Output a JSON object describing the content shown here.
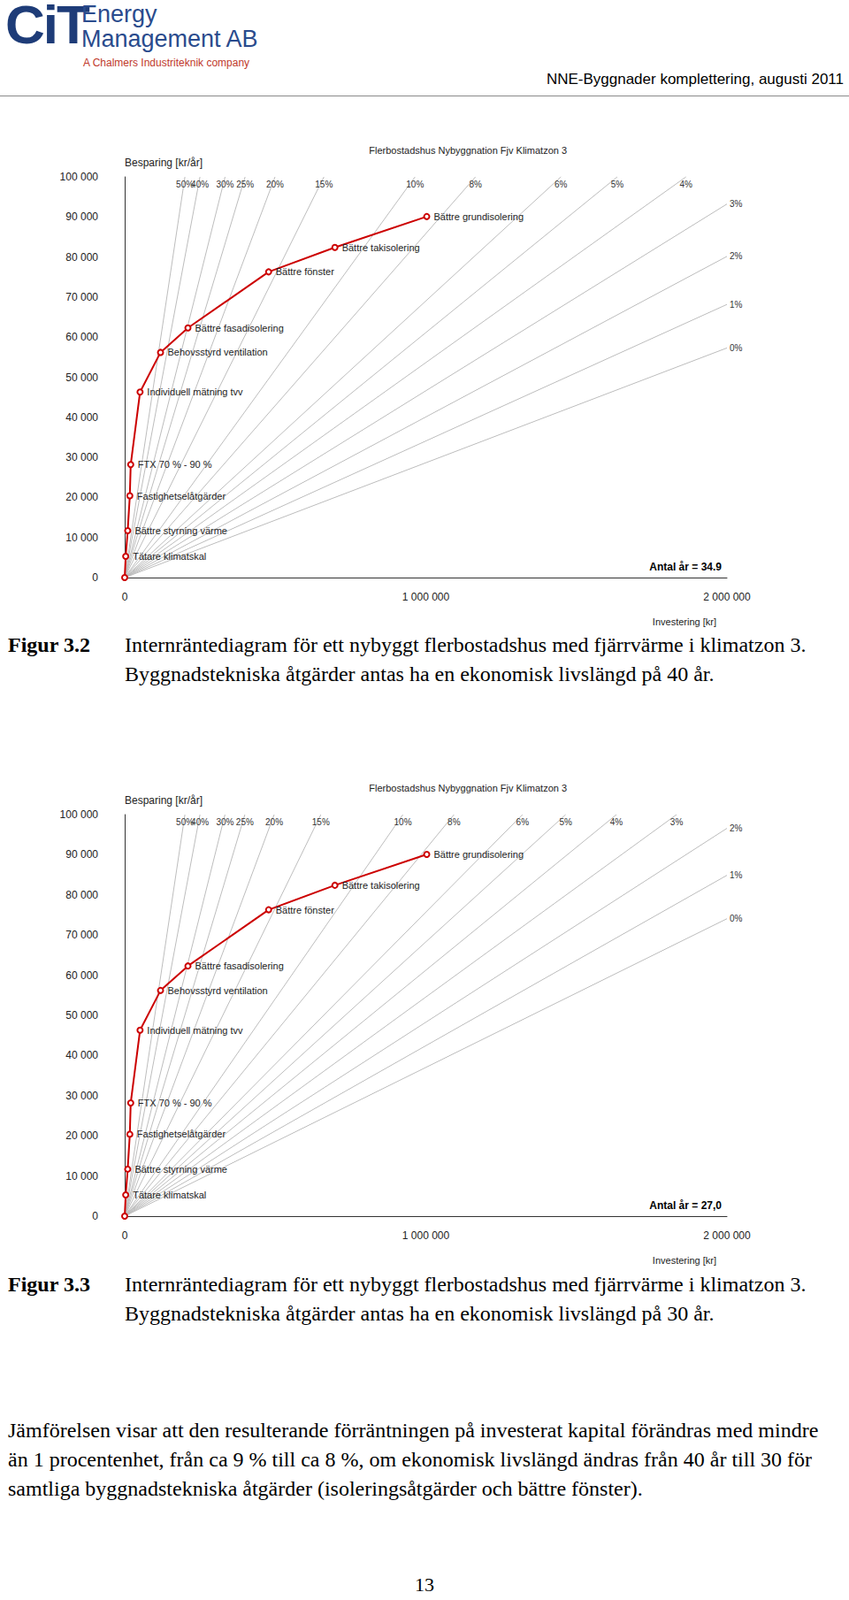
{
  "header": {
    "logo": "CiT",
    "company_lines": [
      "Energy",
      "Management AB"
    ],
    "tagline": "A Chalmers Industriteknik company",
    "report": "NNE-Byggnader komplettering, augusti 2011"
  },
  "chart_data": [
    {
      "type": "line",
      "title": "Flerbostadshus Nybyggnation Fjv Klimatzon 3",
      "y_label": "Besparing [kr/år]",
      "x_label": "Investering [kr]",
      "xlim": [
        0,
        2000000
      ],
      "xticks": [
        0,
        {
          "value": 1000000,
          "label": "1 000 000"
        },
        {
          "value": 2000000,
          "label": "2 000 000"
        }
      ],
      "ylim": [
        0,
        100000
      ],
      "yticks": [
        0,
        {
          "value": 10000,
          "label": "10 000"
        },
        {
          "value": 20000,
          "label": "20 000"
        },
        {
          "value": 30000,
          "label": "30 000"
        },
        {
          "value": 40000,
          "label": "40 000"
        },
        {
          "value": 50000,
          "label": "50 000"
        },
        {
          "value": 60000,
          "label": "60 000"
        },
        {
          "value": 70000,
          "label": "70 000"
        },
        {
          "value": 80000,
          "label": "80 000"
        },
        {
          "value": 90000,
          "label": "90 000"
        },
        {
          "value": 100000,
          "label": "100 000"
        }
      ],
      "grid": false,
      "series": [
        {
          "type": "line",
          "color": "#cc0000",
          "marker": "circle",
          "x": [
            0,
            3400,
            10000,
            17000,
            20000,
            51000,
            119000,
            210000,
            478000,
            698000,
            1003000
          ],
          "values": [
            0,
            5300,
            11700,
            20400,
            28200,
            46300,
            56200,
            62300,
            76300,
            82400,
            90100
          ],
          "point_labels": [
            null,
            "Tätare klimatskal",
            "Bättre styrning värme",
            "Fastighetselåtgärder",
            "FTX 70 % - 90 %",
            "Individuell mätning tvv",
            "Behovsstyrd ventilation",
            "Bättre fasadisolering",
            "Bättre fönster",
            "Bättre takisolering",
            "Bättre grundisolering"
          ]
        }
      ],
      "rate_lines": {
        "color": "#bdbdbd",
        "rates": [
          50,
          40,
          30,
          25,
          20,
          15,
          10,
          8,
          6,
          5,
          4,
          3,
          2,
          1,
          0
        ],
        "labels": [
          "50%",
          "40%",
          "30%",
          "25%",
          "20%",
          "15%",
          "10%",
          "8%",
          "6%",
          "5%",
          "4%",
          "3%",
          "2%",
          "1%",
          "0%"
        ],
        "years": 34.9,
        "years_label": "Antal år = 34.9"
      }
    },
    {
      "type": "line",
      "title": "Flerbostadshus Nybyggnation Fjv Klimatzon 3",
      "y_label": "Besparing [kr/år]",
      "x_label": "Investering [kr]",
      "xlim": [
        0,
        2000000
      ],
      "xticks": [
        0,
        {
          "value": 1000000,
          "label": "1 000 000"
        },
        {
          "value": 2000000,
          "label": "2 000 000"
        }
      ],
      "ylim": [
        0,
        100000
      ],
      "yticks": [
        0,
        {
          "value": 10000,
          "label": "10 000"
        },
        {
          "value": 20000,
          "label": "20 000"
        },
        {
          "value": 30000,
          "label": "30 000"
        },
        {
          "value": 40000,
          "label": "40 000"
        },
        {
          "value": 50000,
          "label": "50 000"
        },
        {
          "value": 60000,
          "label": "60 000"
        },
        {
          "value": 70000,
          "label": "70 000"
        },
        {
          "value": 80000,
          "label": "80 000"
        },
        {
          "value": 90000,
          "label": "90 000"
        },
        {
          "value": 100000,
          "label": "100 000"
        }
      ],
      "grid": false,
      "series": [
        {
          "type": "line",
          "color": "#cc0000",
          "marker": "circle",
          "x": [
            0,
            3400,
            10000,
            17000,
            20000,
            51000,
            119000,
            210000,
            478000,
            698000,
            1003000
          ],
          "values": [
            0,
            5300,
            11700,
            20400,
            28200,
            46300,
            56200,
            62300,
            76300,
            82400,
            90100
          ],
          "point_labels": [
            null,
            "Tätare klimatskal",
            "Bättre styrning värme",
            "Fastighetselåtgärder",
            "FTX 70 % - 90 %",
            "Individuell mätning tvv",
            "Behovsstyrd ventilation",
            "Bättre fasadisolering",
            "Bättre fönster",
            "Bättre takisolering",
            "Bättre grundisolering"
          ]
        }
      ],
      "rate_lines": {
        "color": "#bdbdbd",
        "rates": [
          50,
          40,
          30,
          25,
          20,
          15,
          10,
          8,
          6,
          5,
          4,
          3,
          2,
          1,
          0
        ],
        "labels": [
          "50%",
          "40%",
          "30%",
          "25%",
          "20%",
          "15%",
          "10%",
          "8%",
          "6%",
          "5%",
          "4%",
          "3%",
          "2%",
          "1%",
          "0%"
        ],
        "years": 27.0,
        "years_label": "Antal år = 27,0"
      }
    }
  ],
  "captions": [
    {
      "label": "Figur 3.2",
      "text": "Internräntediagram för ett nybyggt flerbostadshus med fjärrvärme i klimatzon 3. Byggnadstekniska åtgärder antas ha en ekonomisk livslängd på 40 år."
    },
    {
      "label": "Figur 3.3",
      "text": "Internräntediagram för ett nybyggt flerbostadshus med fjärrvärme i klimatzon 3. Byggnadstekniska åtgärder antas ha en ekonomisk livslängd på 30 år."
    }
  ],
  "paragraph": "Jämförelsen visar att den resulterande förräntningen på investerat kapital förändras med mindre än 1 procentenhet, från ca 9 % till ca 8 %, om ekonomisk livslängd ändras från 40 år till 30 för samtliga byggnadstekniska åtgärder (isoleringsåtgärder och bättre fönster).",
  "page_number": "13"
}
